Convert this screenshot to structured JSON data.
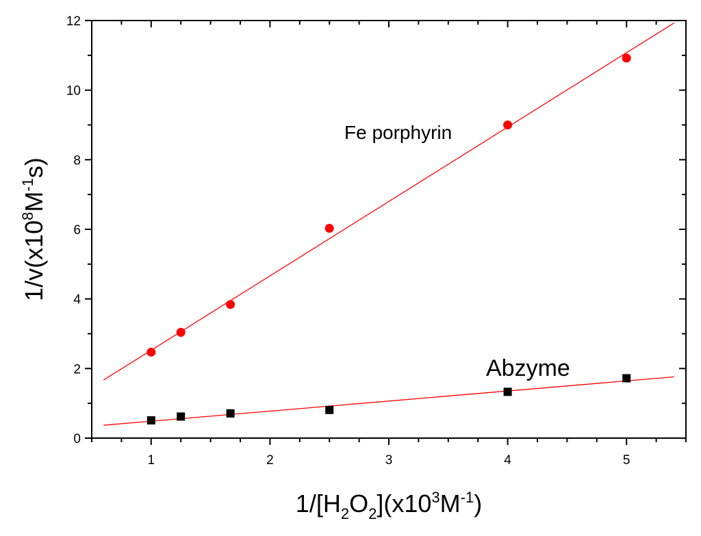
{
  "chart_data": {
    "type": "scatter",
    "xlabel": {
      "base": "1/[H",
      "sub1": "2",
      "mid": "O",
      "sub2": "2",
      "tail": "](x10",
      "sup1": "3",
      "tail2": "M",
      "sup2": "-1",
      "end": ")"
    },
    "ylabel": {
      "base": "1/v(x10",
      "sup1": "8",
      "mid": "M",
      "sup2": "-1",
      "end": "s)"
    },
    "xlim": [
      0.5,
      5.5
    ],
    "ylim": [
      0,
      12
    ],
    "x_ticks": [
      1,
      2,
      3,
      4,
      5
    ],
    "y_ticks": [
      0,
      2,
      4,
      6,
      8,
      10,
      12
    ],
    "grid": false,
    "series": [
      {
        "name": "Fe porphyrin",
        "marker": "circle",
        "color": "#ff0000",
        "x": [
          1.0,
          1.25,
          1.667,
          2.5,
          4.0,
          5.0
        ],
        "y": [
          2.47,
          3.04,
          3.84,
          6.03,
          9.0,
          10.92
        ],
        "fit": {
          "x": [
            0.6,
            5.4
          ],
          "y": [
            1.67,
            11.93
          ],
          "color": "#ff0000"
        }
      },
      {
        "name": "Abzyme",
        "marker": "square",
        "color": "#000000",
        "x": [
          1.0,
          1.25,
          1.667,
          2.5,
          4.0,
          5.0
        ],
        "y": [
          0.51,
          0.62,
          0.71,
          0.81,
          1.33,
          1.72
        ],
        "fit": {
          "x": [
            0.6,
            5.4
          ],
          "y": [
            0.37,
            1.76
          ],
          "color": "#ff0000"
        }
      }
    ]
  }
}
